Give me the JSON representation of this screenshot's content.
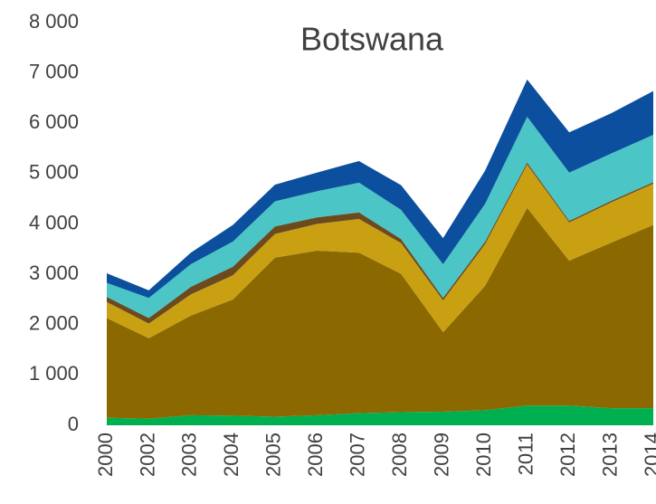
{
  "chart_data": {
    "type": "stacked_area",
    "title": "Botswana",
    "categories": [
      "2000",
      "2002",
      "2003",
      "2004",
      "2005",
      "2006",
      "2007",
      "2008",
      "2009",
      "2010",
      "2011",
      "2012",
      "2013",
      "2014"
    ],
    "series": [
      {
        "color": "#00b050",
        "values": [
          150,
          130,
          200,
          190,
          170,
          200,
          240,
          260,
          270,
          300,
          390,
          390,
          340,
          340
        ]
      },
      {
        "color": "#8b6900",
        "values": [
          1980,
          1600,
          1980,
          2310,
          3160,
          3270,
          3190,
          2750,
          1580,
          2470,
          3930,
          2880,
          3290,
          3640
        ]
      },
      {
        "color": "#c9a012",
        "values": [
          320,
          290,
          420,
          480,
          470,
          530,
          670,
          610,
          630,
          830,
          860,
          760,
          800,
          820
        ]
      },
      {
        "color": "#6b4a1e",
        "values": [
          100,
          110,
          150,
          170,
          150,
          130,
          130,
          80,
          50,
          50,
          40,
          30,
          30,
          30
        ]
      },
      {
        "color": "#4bc5c5",
        "values": [
          280,
          400,
          450,
          500,
          500,
          520,
          590,
          580,
          670,
          750,
          910,
          960,
          940,
          940
        ]
      },
      {
        "color": "#0b4f9e",
        "values": [
          190,
          150,
          230,
          330,
          330,
          370,
          430,
          490,
          520,
          660,
          740,
          800,
          800,
          870
        ]
      }
    ],
    "ylim": [
      0,
      8000
    ],
    "yticks": [
      0,
      {
        "value": 1000,
        "label": "1 000"
      },
      {
        "value": 2000,
        "label": "2 000"
      },
      {
        "value": 3000,
        "label": "3 000"
      },
      {
        "value": 4000,
        "label": "4 000"
      },
      {
        "value": 5000,
        "label": "5 000"
      },
      {
        "value": 6000,
        "label": "6 000"
      },
      {
        "value": 7000,
        "label": "7 000"
      },
      {
        "value": 8000,
        "label": "8 000"
      }
    ]
  }
}
